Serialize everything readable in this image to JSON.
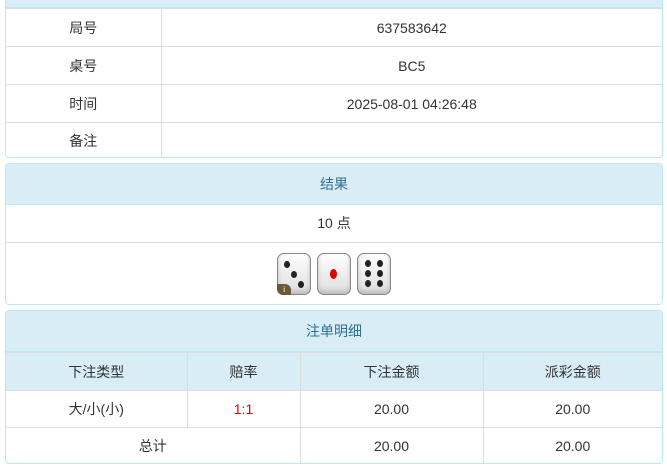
{
  "info": {
    "rows": [
      {
        "label": "局号",
        "value": "637583642"
      },
      {
        "label": "桌号",
        "value": "BC5"
      },
      {
        "label": "时间",
        "value": "2025-08-01 04:26:48"
      },
      {
        "label": "备注",
        "value": ""
      }
    ]
  },
  "result": {
    "title": "结果",
    "points": "10 点",
    "dice": [
      3,
      1,
      6
    ],
    "info_badge": "i"
  },
  "bets": {
    "title": "注单明细",
    "headers": [
      "下注类型",
      "赔率",
      "下注金额",
      "派彩金额"
    ],
    "row": {
      "type": "大/小(小)",
      "odds": "1:1",
      "amount": "20.00",
      "payout": "20.00"
    },
    "total": {
      "label": "总计",
      "amount": "20.00",
      "payout": "20.00"
    },
    "odds_color": "#e00000"
  }
}
